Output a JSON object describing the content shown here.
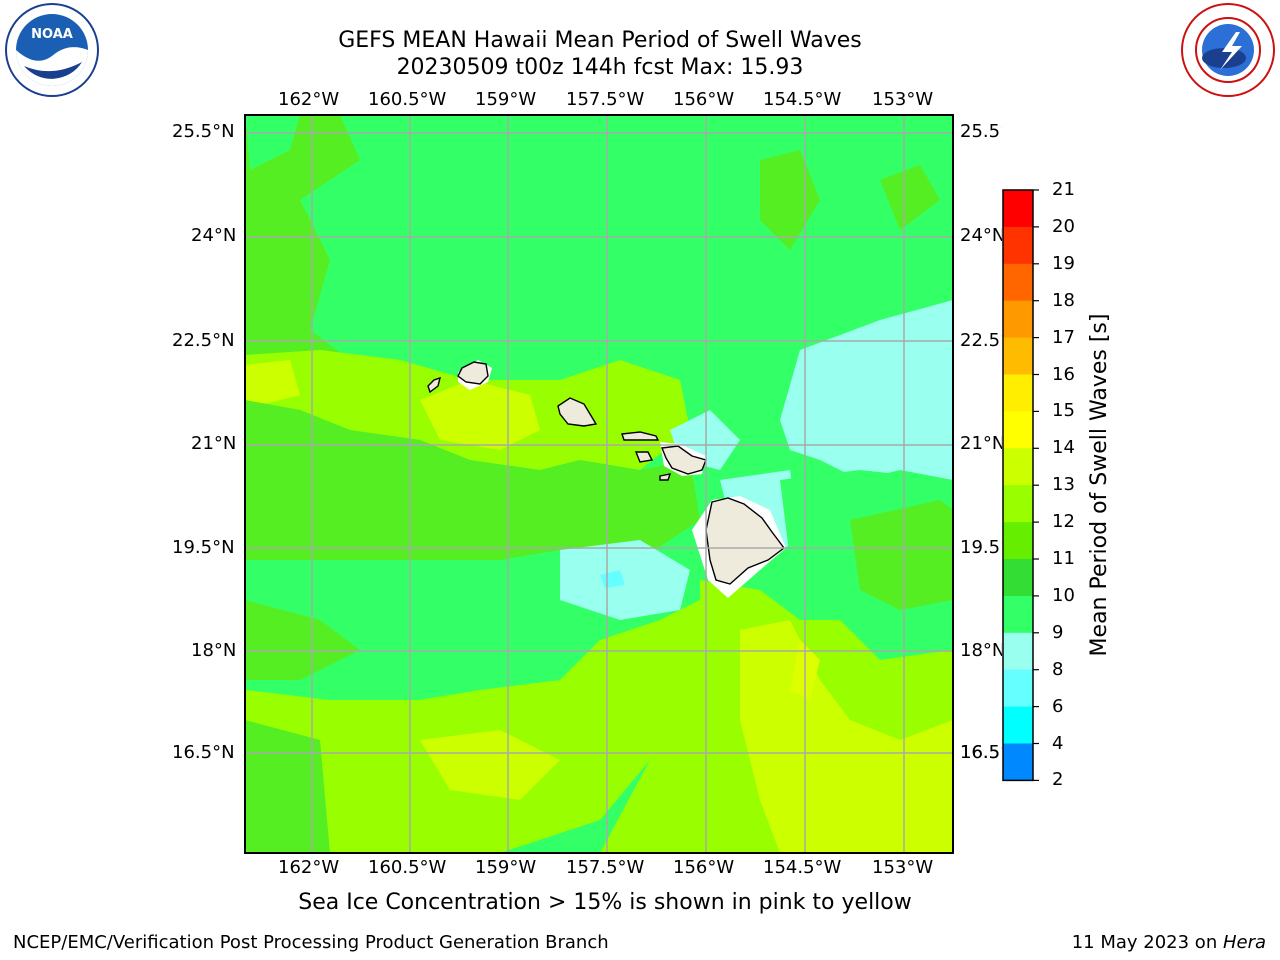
{
  "title_line1": "GEFS MEAN Hawaii Mean Period of Swell Waves",
  "title_line2": "20230509 t00z 144h fcst   Max: 15.93",
  "lon_labels": [
    "162°W",
    "160.5°W",
    "159°W",
    "157.5°W",
    "156°W",
    "154.5°W",
    "153°W"
  ],
  "lat_labels": [
    "25.5°N",
    "24°N",
    "22.5°N",
    "21°N",
    "19.5°N",
    "18°N",
    "16.5°N"
  ],
  "colorbar": {
    "label": "Mean Period of Swell Waves [s]",
    "ticks": [
      "21",
      "20",
      "19",
      "18",
      "17",
      "16",
      "15",
      "14",
      "13",
      "12",
      "11",
      "10",
      "9",
      "8",
      "6",
      "4",
      "2"
    ],
    "colors": [
      "#ff0000",
      "#ff3300",
      "#ff6600",
      "#ff9900",
      "#ffbb00",
      "#ffee00",
      "#ffff00",
      "#ccff00",
      "#99ff00",
      "#66ee00",
      "#33dd33",
      "#33ff66",
      "#99ffee",
      "#66ffff",
      "#00ffff",
      "#0088ff",
      "#0000ff"
    ]
  },
  "footnote": "Sea Ice Concentration > 15% is shown in pink to yellow",
  "footer_left": "NCEP/EMC/Verification Post Processing Product Generation Branch",
  "footer_right_date": "11 May 2023 on ",
  "footer_right_host": "Hera",
  "logos": {
    "left": "NOAA",
    "right": "NATIONAL WEATHER SERVICE"
  }
}
